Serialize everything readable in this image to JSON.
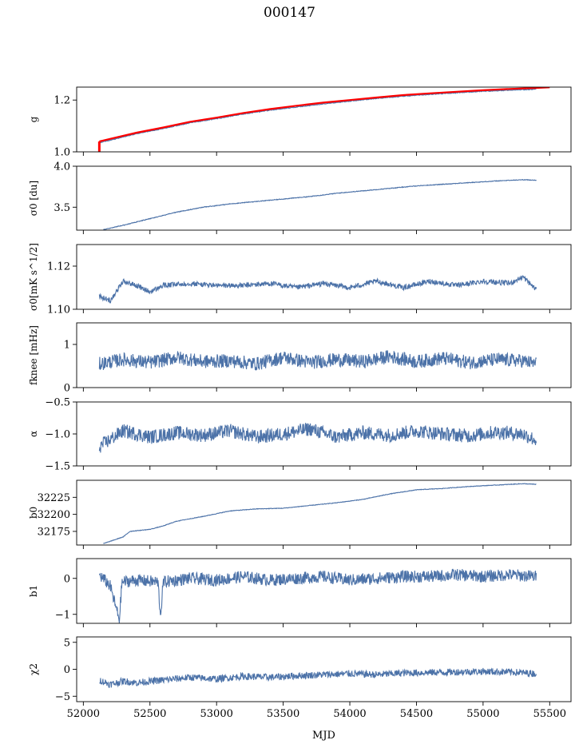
{
  "title": "000147",
  "x_axis": {
    "label": "MJD",
    "range": [
      51950,
      55660
    ],
    "ticks": [
      52000,
      52500,
      53000,
      53500,
      54000,
      54500,
      55000,
      55500
    ],
    "tick_labels": [
      "52000",
      "52500",
      "53000",
      "53500",
      "54000",
      "54500",
      "55000",
      "55500"
    ]
  },
  "colors": {
    "line": "#4c72a8",
    "fit": "#ff0000",
    "axes": "#000000"
  },
  "chart_data": [
    {
      "type": "line",
      "id": "g",
      "ylabel": "g",
      "ylim": [
        1.0,
        1.25
      ],
      "yticks": [
        1.0,
        1.2
      ],
      "ytick_labels": [
        "1.0",
        "1.2"
      ],
      "series": [
        {
          "style": "line",
          "x": [
            52120,
            52200,
            52400,
            52600,
            52800,
            53000,
            53200,
            53400,
            53600,
            53800,
            54000,
            54200,
            54400,
            54600,
            54800,
            55000,
            55200,
            55400
          ],
          "y": [
            1.035,
            1.045,
            1.07,
            1.09,
            1.112,
            1.128,
            1.146,
            1.161,
            1.173,
            1.185,
            1.196,
            1.206,
            1.215,
            1.222,
            1.228,
            1.234,
            1.238,
            1.242
          ]
        },
        {
          "style": "fit",
          "x": [
            52120,
            52200,
            52400,
            52600,
            52800,
            53000,
            53200,
            53400,
            53600,
            53800,
            54000,
            54200,
            54400,
            54600,
            54800,
            55000,
            55200,
            55400,
            55500
          ],
          "y": [
            1.04,
            1.05,
            1.074,
            1.094,
            1.116,
            1.132,
            1.15,
            1.165,
            1.178,
            1.19,
            1.2,
            1.21,
            1.219,
            1.226,
            1.232,
            1.238,
            1.243,
            1.247,
            1.249
          ]
        },
        {
          "style": "fit-marker",
          "x": [
            52120,
            52120
          ],
          "y": [
            1.0,
            1.04
          ]
        }
      ]
    },
    {
      "type": "line",
      "id": "sigma0-du",
      "ylabel": "σ0 [du]",
      "ylim": [
        3.22,
        4.0
      ],
      "yticks": [
        3.5,
        4.0
      ],
      "ytick_labels": [
        "3.5",
        "4.0"
      ],
      "series": [
        {
          "style": "line",
          "x": [
            52150,
            52300,
            52500,
            52700,
            52900,
            53100,
            53300,
            53500,
            53700,
            53900,
            54100,
            54300,
            54500,
            54700,
            54900,
            55100,
            55300,
            55400
          ],
          "y": [
            3.225,
            3.28,
            3.36,
            3.44,
            3.5,
            3.54,
            3.57,
            3.6,
            3.63,
            3.67,
            3.7,
            3.73,
            3.76,
            3.78,
            3.8,
            3.82,
            3.835,
            3.83
          ]
        }
      ]
    },
    {
      "type": "line",
      "id": "sigma0-mk",
      "ylabel": "σ0[mK s^1/2]",
      "ylim": [
        1.1,
        1.13
      ],
      "yticks": [
        1.1,
        1.12
      ],
      "ytick_labels": [
        "1.10",
        "1.12"
      ],
      "series": [
        {
          "style": "line",
          "x": [
            52120,
            52200,
            52300,
            52400,
            52500,
            52600,
            52800,
            53000,
            53200,
            53400,
            53600,
            53800,
            54000,
            54200,
            54400,
            54600,
            54800,
            55000,
            55200,
            55300,
            55400
          ],
          "y": [
            1.106,
            1.104,
            1.113,
            1.111,
            1.108,
            1.111,
            1.112,
            1.111,
            1.111,
            1.112,
            1.11,
            1.112,
            1.11,
            1.113,
            1.11,
            1.113,
            1.111,
            1.113,
            1.112,
            1.115,
            1.109
          ]
        }
      ]
    },
    {
      "type": "line",
      "id": "fknee",
      "ylabel": "fknee [mHz]",
      "ylim": [
        0,
        1.5
      ],
      "yticks": [
        0,
        1
      ],
      "ytick_labels": [
        "0",
        "1"
      ],
      "series": [
        {
          "style": "line",
          "x": [
            52120,
            52300,
            52500,
            52700,
            52900,
            53100,
            53300,
            53500,
            53700,
            53900,
            54100,
            54300,
            54500,
            54700,
            54900,
            55100,
            55300,
            55400
          ],
          "y": [
            0.55,
            0.65,
            0.58,
            0.7,
            0.6,
            0.62,
            0.55,
            0.7,
            0.58,
            0.65,
            0.6,
            0.72,
            0.6,
            0.68,
            0.58,
            0.65,
            0.62,
            0.55
          ]
        }
      ]
    },
    {
      "type": "line",
      "id": "alpha",
      "ylabel": "α",
      "ylim": [
        -1.5,
        -0.5
      ],
      "yticks": [
        -1.5,
        -1.0,
        -0.5
      ],
      "ytick_labels": [
        "−1.5",
        "−1.0",
        "−0.5"
      ],
      "series": [
        {
          "style": "line",
          "x": [
            52120,
            52300,
            52500,
            52700,
            52900,
            53100,
            53300,
            53500,
            53700,
            53900,
            54100,
            54300,
            54500,
            54700,
            54900,
            55100,
            55300,
            55400
          ],
          "y": [
            -1.2,
            -0.95,
            -1.05,
            -0.98,
            -1.02,
            -0.95,
            -1.05,
            -1.0,
            -0.92,
            -1.05,
            -0.98,
            -1.02,
            -0.95,
            -1.0,
            -1.03,
            -0.97,
            -1.0,
            -1.1
          ]
        }
      ]
    },
    {
      "type": "line",
      "id": "b0",
      "ylabel": "b0",
      "ylim": [
        32155,
        32250
      ],
      "yticks": [
        32175,
        32200,
        32225
      ],
      "ytick_labels": [
        "32175",
        "32200",
        "32225"
      ],
      "series": [
        {
          "style": "line",
          "x": [
            52150,
            52300,
            52350,
            52500,
            52600,
            52700,
            52900,
            53100,
            53300,
            53500,
            53700,
            53900,
            54100,
            54300,
            54500,
            54700,
            54900,
            55100,
            55300,
            55400
          ],
          "y": [
            32157,
            32167,
            32175,
            32178,
            32183,
            32190,
            32197,
            32205,
            32208,
            32209,
            32213,
            32217,
            32222,
            32230,
            32236,
            32238,
            32241,
            32243,
            32245,
            32244
          ]
        }
      ]
    },
    {
      "type": "line",
      "id": "b1",
      "ylabel": "b1",
      "ylim": [
        -1.25,
        0.55
      ],
      "yticks": [
        -1,
        0
      ],
      "ytick_labels": [
        "−1",
        "0"
      ],
      "series": [
        {
          "style": "line",
          "x": [
            52120,
            52200,
            52270,
            52290,
            52400,
            52560,
            52580,
            52600,
            52800,
            53000,
            53200,
            53400,
            53600,
            53800,
            54000,
            54200,
            54400,
            54600,
            54800,
            55000,
            55200,
            55400
          ],
          "y": [
            0.1,
            -0.2,
            -1.15,
            -0.1,
            -0.05,
            -0.1,
            -1.05,
            -0.1,
            0.0,
            -0.05,
            0.05,
            -0.05,
            0.0,
            0.05,
            -0.05,
            0.0,
            0.05,
            0.05,
            0.1,
            0.05,
            0.1,
            0.05
          ]
        }
      ]
    },
    {
      "type": "line",
      "id": "chi2",
      "ylabel": "χ2",
      "ylim": [
        -6,
        6
      ],
      "yticks": [
        -5,
        0,
        5
      ],
      "ytick_labels": [
        "−5",
        "0",
        "5"
      ],
      "series": [
        {
          "style": "line",
          "x": [
            52120,
            52200,
            52300,
            52400,
            52600,
            52800,
            53000,
            53200,
            53400,
            53600,
            53800,
            54000,
            54200,
            54400,
            54600,
            54800,
            55000,
            55200,
            55400
          ],
          "y": [
            -2.0,
            -2.8,
            -2.2,
            -2.5,
            -2.0,
            -1.5,
            -1.8,
            -1.3,
            -1.5,
            -1.2,
            -1.0,
            -0.8,
            -1.0,
            -0.7,
            -0.6,
            -0.5,
            -0.4,
            -0.5,
            -0.8
          ]
        }
      ]
    }
  ]
}
